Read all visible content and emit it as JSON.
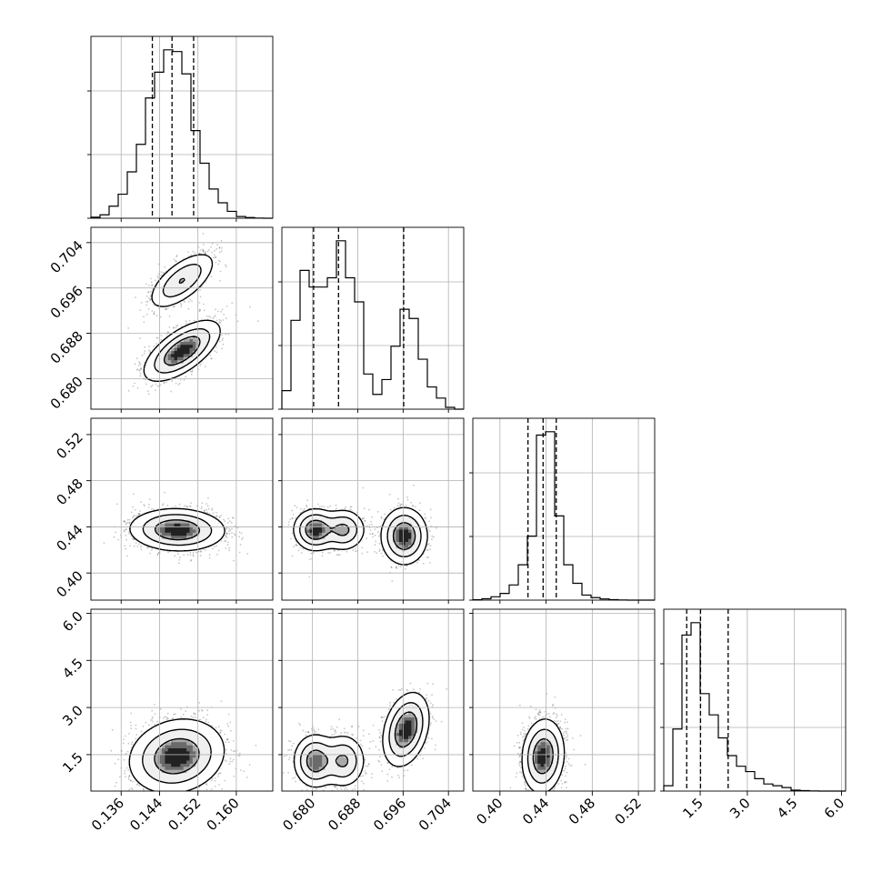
{
  "chart_data": {
    "type": "corner",
    "grid": true,
    "params": [
      {
        "ticks": [
          0.136,
          0.144,
          0.152,
          0.16
        ],
        "tick_labels": [
          "0.136",
          "0.144",
          "0.152",
          "0.160"
        ],
        "range": [
          0.1297,
          0.1676
        ],
        "quantiles": [
          0.1425,
          0.1466,
          0.1511
        ]
      },
      {
        "ticks": [
          0.68,
          0.688,
          0.696,
          0.704
        ],
        "tick_labels": [
          "0.680",
          "0.688",
          "0.696",
          "0.704"
        ],
        "range": [
          0.6746,
          0.7067
        ],
        "quantiles": [
          0.6802,
          0.6846,
          0.6961
        ]
      },
      {
        "ticks": [
          0.4,
          0.44,
          0.48,
          0.52
        ],
        "tick_labels": [
          "0.40",
          "0.44",
          "0.48",
          "0.52"
        ],
        "range": [
          0.3765,
          0.5341
        ],
        "quantiles": [
          0.4243,
          0.4374,
          0.4488
        ]
      },
      {
        "ticks": [
          1.5,
          3.0,
          4.5,
          6.0
        ],
        "tick_labels": [
          "1.5",
          "3.0",
          "4.5",
          "6.0"
        ],
        "range": [
          0.34,
          6.13
        ],
        "quantiles": [
          1.07,
          1.51,
          2.39
        ]
      }
    ],
    "histograms": [
      {
        "counts": [
          0.6,
          2,
          7,
          14,
          27,
          43,
          70,
          85,
          98,
          97,
          84,
          51,
          32,
          17,
          9,
          4,
          1,
          0.4,
          0.1,
          0
        ]
      },
      {
        "counts": [
          10,
          48,
          75,
          66,
          66,
          71,
          91,
          71,
          58,
          19,
          8,
          16,
          34,
          54,
          49,
          27,
          12,
          6,
          1,
          0
        ]
      },
      {
        "counts": [
          0.2,
          0.8,
          2,
          4,
          9,
          21,
          38,
          98,
          100,
          50,
          21,
          10,
          3,
          1.5,
          0.7,
          0.3,
          0.1,
          0,
          0,
          0
        ]
      },
      {
        "counts": [
          3,
          35,
          88,
          95,
          55,
          43,
          30,
          20,
          14,
          11,
          7,
          4,
          3,
          2,
          0.5,
          0.3,
          0.1,
          0,
          0,
          0
        ]
      }
    ],
    "joint": [
      {
        "xi": 0,
        "yi": 1,
        "modes": [
          {
            "mx": 0.1487,
            "my": 0.6973,
            "sx": 0.0033,
            "sy": 0.0024,
            "rho": 0.65,
            "w": 0.38
          },
          {
            "mx": 0.1487,
            "my": 0.6849,
            "sx": 0.0037,
            "sy": 0.0025,
            "rho": 0.65,
            "w": 0.62
          }
        ]
      },
      {
        "xi": 0,
        "yi": 2,
        "modes": [
          {
            "mx": 0.1477,
            "my": 0.4374,
            "sx": 0.0046,
            "sy": 0.0085,
            "rho": -0.05,
            "w": 1.0
          }
        ]
      },
      {
        "xi": 1,
        "yi": 2,
        "modes": [
          {
            "mx": 0.6805,
            "my": 0.4374,
            "sx": 0.0018,
            "sy": 0.0085,
            "rho": 0.0,
            "w": 0.36
          },
          {
            "mx": 0.6855,
            "my": 0.4374,
            "sx": 0.0018,
            "sy": 0.0085,
            "rho": 0.0,
            "w": 0.26
          },
          {
            "mx": 0.6962,
            "my": 0.432,
            "sx": 0.0019,
            "sy": 0.0115,
            "rho": 0.0,
            "w": 0.38
          }
        ]
      },
      {
        "xi": 0,
        "yi": 3,
        "modes": [
          {
            "mx": 0.1476,
            "my": 1.45,
            "sx": 0.0046,
            "sy": 0.55,
            "rho": 0.15,
            "w": 1.0
          }
        ]
      },
      {
        "xi": 1,
        "yi": 3,
        "modes": [
          {
            "mx": 0.6805,
            "my": 1.3,
            "sx": 0.0018,
            "sy": 0.4,
            "rho": 0.0,
            "w": 0.34
          },
          {
            "mx": 0.6855,
            "my": 1.3,
            "sx": 0.0018,
            "sy": 0.4,
            "rho": 0.0,
            "w": 0.26
          },
          {
            "mx": 0.6965,
            "my": 2.3,
            "sx": 0.0019,
            "sy": 0.55,
            "rho": 0.3,
            "w": 0.4
          }
        ]
      },
      {
        "xi": 2,
        "yi": 3,
        "modes": [
          {
            "mx": 0.4374,
            "my": 1.45,
            "sx": 0.0085,
            "sy": 0.55,
            "rho": 0.1,
            "w": 1.0
          }
        ]
      }
    ],
    "contour_levels": [
      0.6,
      0.3,
      0.1
    ],
    "colors": {
      "line": "#000000",
      "grid": "#b0b0b0",
      "contour_fill_1": "#ffffff",
      "contour_fill_2": "#f0f0f0",
      "contour_fill_3": "#d8d8d8",
      "points": "#000000"
    }
  }
}
